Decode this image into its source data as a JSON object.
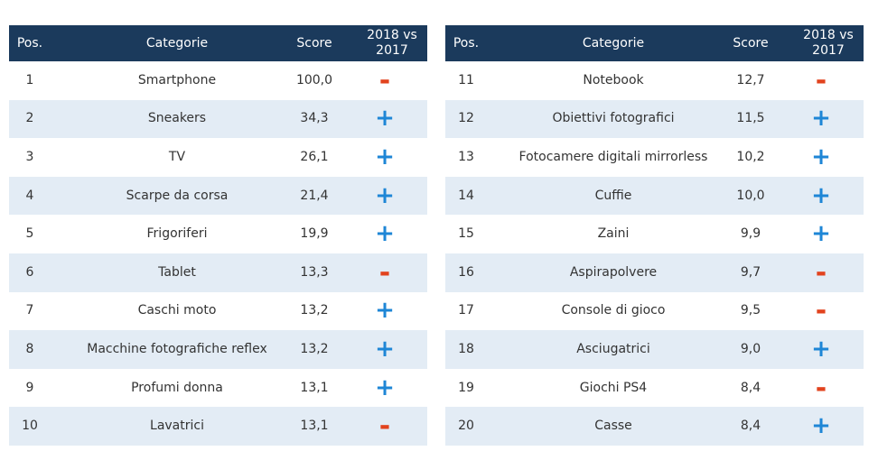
{
  "tables": [
    {
      "header": [
        "Pos.",
        "Categorie",
        "Score",
        "2018 vs 2017"
      ],
      "rows": [
        [
          "1",
          "Smartphone",
          "100,0",
          "-"
        ],
        [
          "2",
          "Sneakers",
          "34,3",
          "+"
        ],
        [
          "3",
          "TV",
          "26,1",
          "+"
        ],
        [
          "4",
          "Scarpe da corsa",
          "21,4",
          "+"
        ],
        [
          "5",
          "Frigoriferi",
          "19,9",
          "+"
        ],
        [
          "6",
          "Tablet",
          "13,3",
          "-"
        ],
        [
          "7",
          "Caschi moto",
          "13,2",
          "+"
        ],
        [
          "8",
          "Macchine fotografiche reflex",
          "13,2",
          "+"
        ],
        [
          "9",
          "Profumi donna",
          "13,1",
          "+"
        ],
        [
          "10",
          "Lavatrici",
          "13,1",
          "-"
        ]
      ]
    },
    {
      "header": [
        "Pos.",
        "Categorie",
        "Score",
        "2018 vs 2017"
      ],
      "rows": [
        [
          "11",
          "Notebook",
          "12,7",
          "-"
        ],
        [
          "12",
          "Obiettivi fotografici",
          "11,5",
          "+"
        ],
        [
          "13",
          "Fotocamere digitali mirrorless",
          "10,2",
          "+"
        ],
        [
          "14",
          "Cuffie",
          "10,0",
          "+"
        ],
        [
          "15",
          "Zaini",
          "9,9",
          "+"
        ],
        [
          "16",
          "Aspirapolvere",
          "9,7",
          "-"
        ],
        [
          "17",
          "Console di gioco",
          "9,5",
          "-"
        ],
        [
          "18",
          "Asciugatrici",
          "9,0",
          "+"
        ],
        [
          "19",
          "Giochi PS4",
          "8,4",
          "-"
        ],
        [
          "20",
          "Casse",
          "8,4",
          "+"
        ]
      ]
    }
  ]
}
